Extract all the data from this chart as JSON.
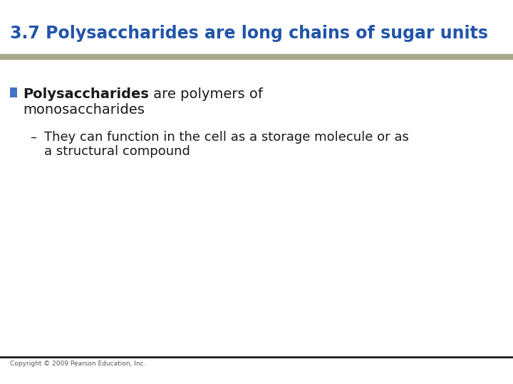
{
  "title": "3.7 Polysaccharides are long chains of sugar units",
  "title_color": "#2255AA",
  "title_fontsize": 17,
  "separator_color_top": "#A8A88A",
  "separator_color_bottom": "#1a1a1a",
  "bullet_color": "#4472C4",
  "bullet_text_bold": "Polysaccharides",
  "bullet_text_normal": " are polymers of",
  "bullet_text_line2": "monosaccharides",
  "sub_bullet_dash": "–",
  "sub_line1": "They can function in the cell as a storage molecule or as",
  "sub_line2": "a structural compound",
  "copyright": "Copyright © 2009 Pearson Education, Inc.",
  "bg_color": "#FFFFFF",
  "body_text_color": "#1a1a1a",
  "body_fontsize": 14,
  "sub_fontsize": 13
}
